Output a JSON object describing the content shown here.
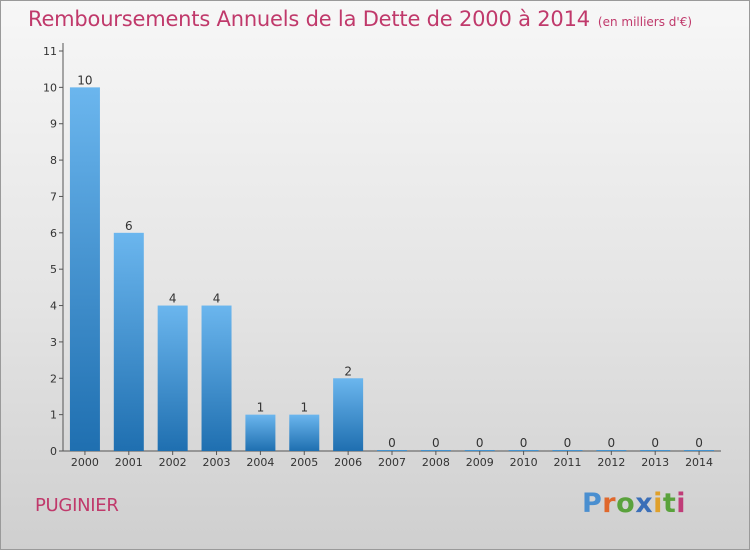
{
  "title": "Remboursements Annuels de la Dette de 2000 à 2014",
  "subtitle": "(en milliers d'€)",
  "commune": "PUGINIER",
  "logo": {
    "letters": [
      "P",
      "r",
      "o",
      "x",
      "i",
      "t",
      "i"
    ],
    "colors": [
      "#4a8fd0",
      "#e0682c",
      "#5aa23c",
      "#3b6fb8",
      "#e0a02a",
      "#5aa23c",
      "#c03c78"
    ]
  },
  "colors": {
    "title": "#c0396b",
    "bar_top": "#6bb6ee",
    "bar_bottom": "#1f6fb0"
  },
  "chart_data": {
    "type": "bar",
    "categories": [
      "2000",
      "2001",
      "2002",
      "2003",
      "2004",
      "2005",
      "2006",
      "2007",
      "2008",
      "2009",
      "2010",
      "2011",
      "2012",
      "2013",
      "2014"
    ],
    "values": [
      10,
      6,
      4,
      4,
      1,
      1,
      2,
      0,
      0,
      0,
      0,
      0,
      0,
      0,
      0
    ],
    "data_labels": [
      "10",
      "6",
      "4",
      "4",
      "1",
      "1",
      "2",
      "0",
      "0",
      "0",
      "0",
      "0",
      "0",
      "0",
      "0"
    ],
    "yticks": [
      0,
      1,
      2,
      3,
      4,
      5,
      6,
      7,
      8,
      9,
      10,
      11
    ],
    "ylim": [
      0,
      11
    ],
    "grid": false,
    "legend": "none"
  }
}
